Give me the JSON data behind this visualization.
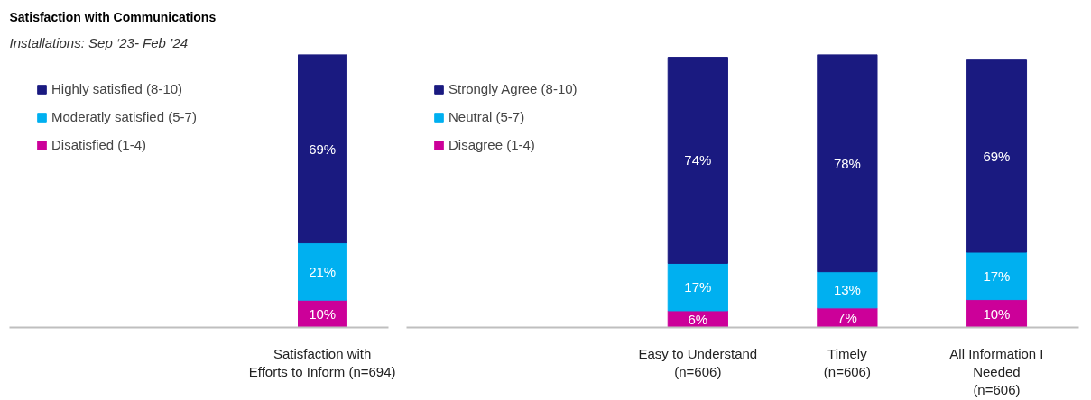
{
  "chart_data": [
    {
      "type": "bar",
      "title": "Satisfaction with Communications",
      "subtitle": "Installations: Sep ‘23- Feb ’24",
      "stacked": true,
      "legend": "top left",
      "grid": false,
      "tick_labels": "x",
      "categories": [
        "Satisfaction with\nEfforts to Inform (n=694)"
      ],
      "series": [
        {
          "name": "Disatisfied (1-4)",
          "color": "#cc0099",
          "values": [
            10
          ],
          "value_labels": [
            "10%"
          ]
        },
        {
          "name": "Moderatly satisfied (5-7)",
          "color": "#00b0f0",
          "values": [
            21
          ],
          "value_labels": [
            "21%"
          ]
        },
        {
          "name": "Highly satisfied (8-10)",
          "color": "#1a1a80",
          "values": [
            69
          ],
          "value_labels": [
            "69%"
          ]
        }
      ]
    },
    {
      "type": "bar",
      "stacked": true,
      "legend": "top left",
      "grid": false,
      "tick_labels": "x",
      "categories": [
        "Easy to Understand\n(n=606)",
        "Timely\n(n=606)",
        "All Information I\nNeeded\n(n=606)"
      ],
      "series": [
        {
          "name": "Disagree (1-4)",
          "color": "#cc0099",
          "values": [
            6,
            7,
            10
          ],
          "value_labels": [
            "6%",
            "7%",
            "10%"
          ]
        },
        {
          "name": "Neutral (5-7)",
          "color": "#00b0f0",
          "values": [
            17,
            13,
            17
          ],
          "value_labels": [
            "17%",
            "13%",
            "17%"
          ]
        },
        {
          "name": "Strongly Agree (8-10)",
          "color": "#1a1a80",
          "values": [
            74,
            78,
            69
          ],
          "value_labels": [
            "74%",
            "78%",
            "69%"
          ]
        }
      ]
    }
  ]
}
